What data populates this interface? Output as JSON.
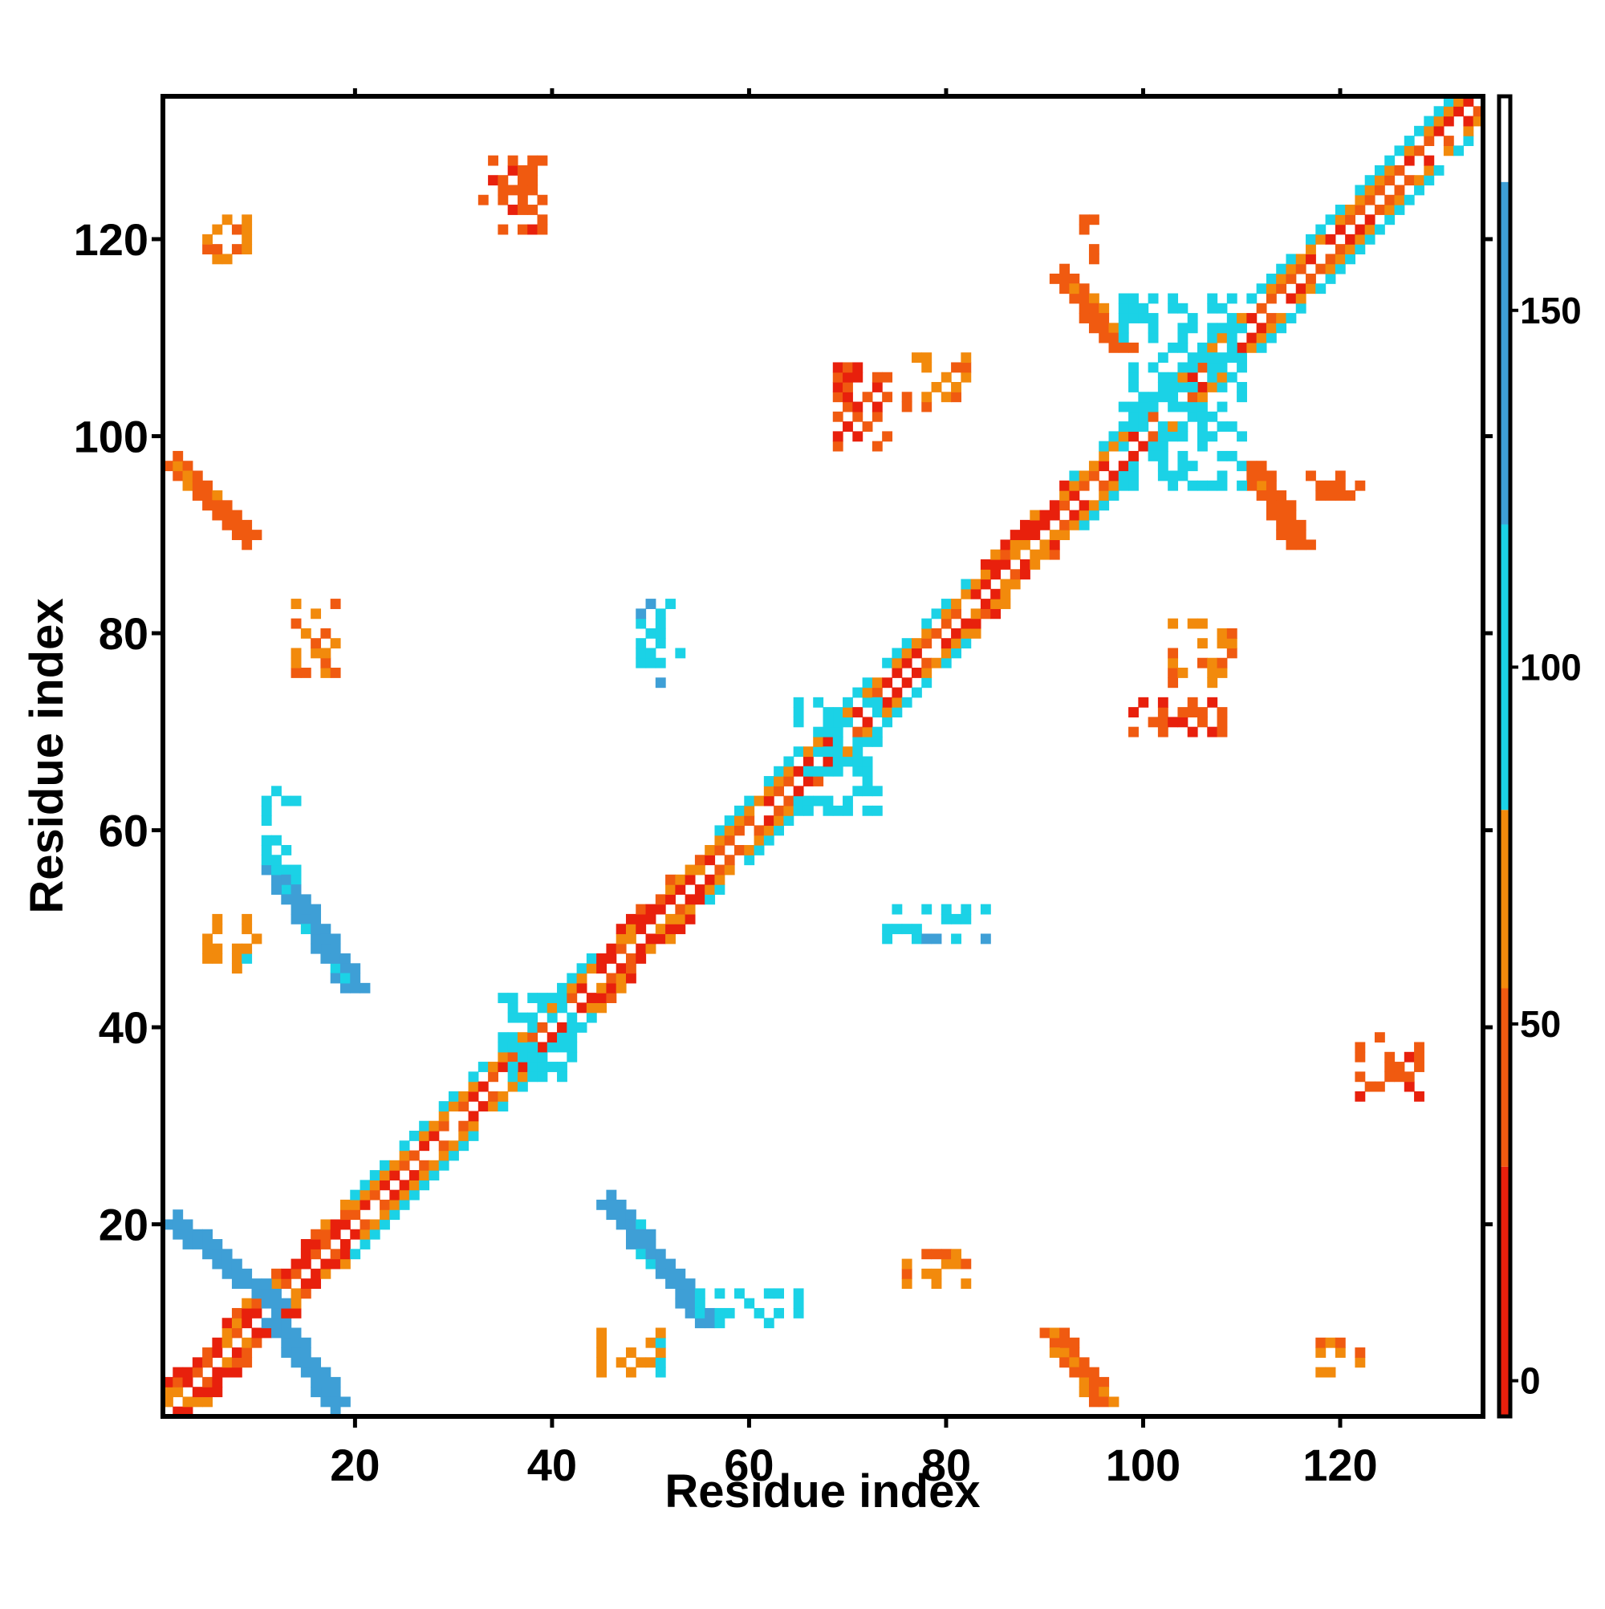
{
  "chart_data": {
    "type": "heatmap",
    "title": "",
    "xlabel": "Residue index",
    "ylabel": "Residue index",
    "xlim": [
      1,
      134
    ],
    "ylim": [
      1,
      134
    ],
    "x_ticks": [
      20,
      40,
      60,
      80,
      100,
      120
    ],
    "y_ticks": [
      20,
      40,
      60,
      80,
      100,
      120
    ],
    "colorbar": {
      "range": [
        -5,
        180
      ],
      "ticks": [
        0,
        50,
        100,
        150
      ],
      "bands": [
        {
          "from": -5,
          "to": 30,
          "color": "#e8200c"
        },
        {
          "from": 30,
          "to": 55,
          "color": "#f05a10"
        },
        {
          "from": 55,
          "to": 80,
          "color": "#f28a0c"
        },
        {
          "from": 80,
          "to": 120,
          "color": "#1bd2e6"
        },
        {
          "from": 120,
          "to": 168,
          "color": "#3e9fd6"
        },
        {
          "from": 168,
          "to": 180,
          "color": "#ffffff"
        }
      ]
    },
    "structure": {
      "diagonal": {
        "start": 1,
        "end": 134,
        "halfwidth": 3
      },
      "helices": [
        [
          20,
          34
        ],
        [
          35,
          44
        ],
        [
          56,
          66
        ],
        [
          69,
          82
        ],
        [
          93,
          109
        ],
        [
          110,
          134
        ]
      ],
      "strands": [
        {
          "a": [
            2,
            12
          ],
          "b": [
            12,
            20
          ],
          "orientation": "anti",
          "value": 142
        },
        {
          "a": [
            12,
            18
          ],
          "b": [
            2,
            10
          ],
          "orientation": "anti",
          "value": 142
        },
        {
          "a": [
            46,
            56
          ],
          "b": [
            10,
            22
          ],
          "orientation": "anti",
          "value": 130
        },
        {
          "a": [
            12,
            20
          ],
          "b": [
            44,
            56
          ],
          "orientation": "anti",
          "value": 130
        },
        {
          "a": [
            2,
            9
          ],
          "b": [
            90,
            97
          ],
          "orientation": "anti",
          "value": 45
        },
        {
          "a": [
            91,
            96
          ],
          "b": [
            2,
            9
          ],
          "orientation": "anti",
          "value": 45
        },
        {
          "a": [
            111,
            116
          ],
          "b": [
            89,
            97
          ],
          "orientation": "anti",
          "value": 45
        },
        {
          "a": [
            92,
            98
          ],
          "b": [
            109,
            116
          ],
          "orientation": "anti",
          "value": 45
        }
      ],
      "patches": [
        {
          "x": [
            98,
            110
          ],
          "y": [
            95,
            114
          ],
          "value": 105
        },
        {
          "x": [
            65,
            73
          ],
          "y": [
            62,
            73
          ],
          "value": 105
        },
        {
          "x": [
            35,
            42
          ],
          "y": [
            35,
            43
          ],
          "value": 105
        },
        {
          "x": [
            11,
            14
          ],
          "y": [
            55,
            64
          ],
          "value": 100
        },
        {
          "x": [
            55,
            65
          ],
          "y": [
            10,
            13
          ],
          "value": 95
        },
        {
          "x": [
            33,
            39
          ],
          "y": [
            121,
            128
          ],
          "value": 40
        },
        {
          "x": [
            122,
            128
          ],
          "y": [
            33,
            39
          ],
          "value": 40
        },
        {
          "x": [
            5,
            10
          ],
          "y": [
            46,
            51
          ],
          "value": 70
        },
        {
          "x": [
            45,
            51
          ],
          "y": [
            5,
            9
          ],
          "value": 70
        },
        {
          "x": [
            69,
            74
          ],
          "y": [
            99,
            107
          ],
          "value": 35
        },
        {
          "x": [
            99,
            108
          ],
          "y": [
            70,
            73
          ],
          "value": 35
        },
        {
          "x": [
            74,
            84
          ],
          "y": [
            49,
            52
          ],
          "value": 110
        },
        {
          "x": [
            49,
            53
          ],
          "y": [
            75,
            83
          ],
          "value": 110
        },
        {
          "x": [
            5,
            9
          ],
          "y": [
            118,
            122
          ],
          "value": 60
        },
        {
          "x": [
            118,
            122
          ],
          "y": [
            5,
            8
          ],
          "value": 60
        },
        {
          "x": [
            76,
            82
          ],
          "y": [
            103,
            108
          ],
          "value": 60
        },
        {
          "x": [
            103,
            109
          ],
          "y": [
            75,
            81
          ],
          "value": 60
        },
        {
          "x": [
            76,
            82
          ],
          "y": [
            14,
            17
          ],
          "value": 55
        },
        {
          "x": [
            14,
            18
          ],
          "y": [
            76,
            83
          ],
          "value": 55
        },
        {
          "x": [
            94,
            96
          ],
          "y": [
            118,
            122
          ],
          "value": 40
        },
        {
          "x": [
            115,
            122
          ],
          "y": [
            94,
            96
          ],
          "value": 40
        }
      ]
    }
  }
}
